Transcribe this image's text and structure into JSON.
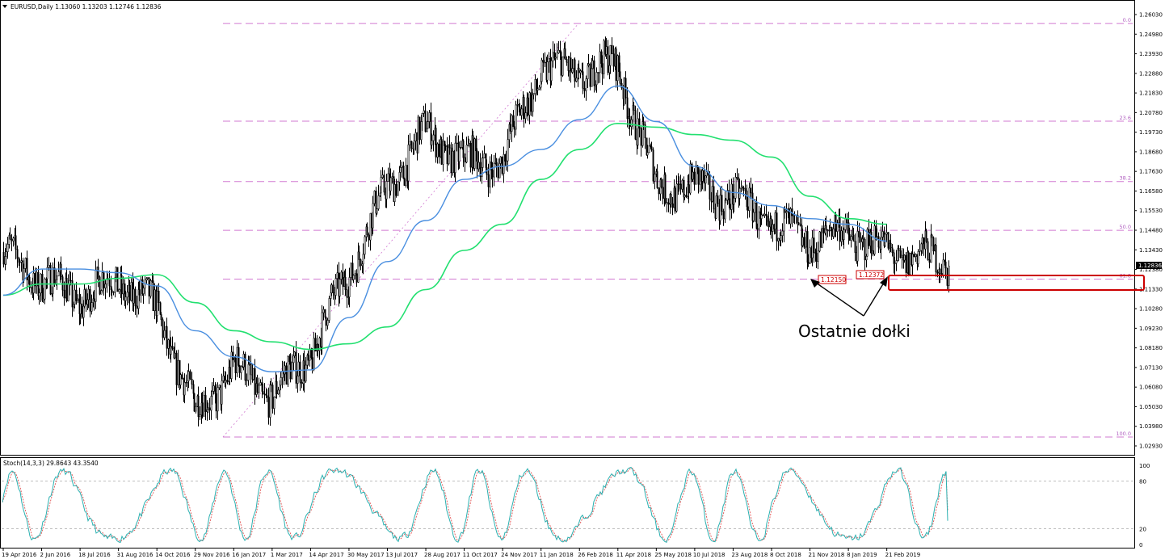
{
  "header": {
    "symbol_line": "EURUSD,Daily  1.13060 1.13203 1.12746 1.12836",
    "stoch_line": "Stoch(14,3,3) 29.8643 43.3540"
  },
  "annotation": {
    "text": "Ostatnie dołki",
    "low1_label": "1.12150",
    "low2_label": "1.12372"
  },
  "colors": {
    "ma_fast": "#4a8fe0",
    "ma_slow": "#22e070",
    "fib": "#d27ad2",
    "stoch_main": "#2ab0b0",
    "stoch_signal": "#e05050",
    "highlight": "#cc0000",
    "candles": "#000000"
  },
  "chart_data": [
    {
      "type": "candlestick",
      "title": "EURUSD,Daily",
      "ohlc_last": {
        "open": 1.1306,
        "high": 1.13203,
        "low": 1.12746,
        "close": 1.12836
      },
      "current_price_label": "1.12836",
      "ylim": [
        1.0293,
        1.2603
      ],
      "y_ticks": [
        "1.26030",
        "1.24980",
        "1.23930",
        "1.22880",
        "1.21830",
        "1.20780",
        "1.19730",
        "1.18680",
        "1.17630",
        "1.16580",
        "1.15530",
        "1.14480",
        "1.13430",
        "1.12380",
        "1.11330",
        "1.10280",
        "1.09230",
        "1.08180",
        "1.07130",
        "1.06080",
        "1.05030",
        "1.03980",
        "1.02930"
      ],
      "x_ticks": [
        "19 Apr 2016",
        "2 Jun 2016",
        "18 Jul 2016",
        "31 Aug 2016",
        "14 Oct 2016",
        "29 Nov 2016",
        "16 Jan 2017",
        "1 Mar 2017",
        "14 Apr 2017",
        "30 May 2017",
        "13 Jul 2017",
        "28 Aug 2017",
        "11 Oct 2017",
        "24 Nov 2017",
        "11 Jan 2018",
        "26 Feb 2018",
        "11 Apr 2018",
        "25 May 2018",
        "10 Jul 2018",
        "23 Aug 2018",
        "8 Oct 2018",
        "21 Nov 2018",
        "8 Jan 2019",
        "21 Feb 2019"
      ],
      "price_path": [
        [
          "19 Apr 2016",
          1.133
        ],
        [
          "2 Jun 2016",
          1.118
        ],
        [
          "18 Jul 2016",
          1.109
        ],
        [
          "31 Aug 2016",
          1.118
        ],
        [
          "14 Oct 2016",
          1.102
        ],
        [
          "29 Nov 2016",
          1.047
        ],
        [
          "16 Jan 2017",
          1.071
        ],
        [
          "1 Mar 2017",
          1.056
        ],
        [
          "14 Apr 2017",
          1.079
        ],
        [
          "30 May 2017",
          1.123
        ],
        [
          "13 Jul 2017",
          1.168
        ],
        [
          "28 Aug 2017",
          1.198
        ],
        [
          "11 Oct 2017",
          1.181
        ],
        [
          "24 Nov 2017",
          1.183
        ],
        [
          "11 Jan 2018",
          1.232
        ],
        [
          "26 Feb 2018",
          1.229
        ],
        [
          "11 Apr 2018",
          1.233
        ],
        [
          "25 May 2018",
          1.168
        ],
        [
          "10 Jul 2018",
          1.168
        ],
        [
          "23 Aug 2018",
          1.162
        ],
        [
          "8 Oct 2018",
          1.148
        ],
        [
          "21 Nov 2018",
          1.139
        ],
        [
          "8 Jan 2019",
          1.144
        ],
        [
          "21 Feb 2019",
          1.133
        ],
        [
          "end",
          1.12836
        ]
      ],
      "ma_fast_path": [
        [
          "19 Apr 2016",
          1.11
        ],
        [
          "2 Jun 2016",
          1.124
        ],
        [
          "18 Jul 2016",
          1.124
        ],
        [
          "31 Aug 2016",
          1.122
        ],
        [
          "14 Oct 2016",
          1.115
        ],
        [
          "29 Nov 2016",
          1.091
        ],
        [
          "16 Jan 2017",
          1.077
        ],
        [
          "1 Mar 2017",
          1.069
        ],
        [
          "14 Apr 2017",
          1.07
        ],
        [
          "30 May 2017",
          1.098
        ],
        [
          "13 Jul 2017",
          1.128
        ],
        [
          "28 Aug 2017",
          1.15
        ],
        [
          "11 Oct 2017",
          1.172
        ],
        [
          "24 Nov 2017",
          1.179
        ],
        [
          "11 Jan 2018",
          1.188
        ],
        [
          "26 Feb 2018",
          1.204
        ],
        [
          "11 Apr 2018",
          1.222
        ],
        [
          "25 May 2018",
          1.203
        ],
        [
          "10 Jul 2018",
          1.179
        ],
        [
          "23 Aug 2018",
          1.165
        ],
        [
          "8 Oct 2018",
          1.158
        ],
        [
          "21 Nov 2018",
          1.151
        ],
        [
          "8 Jan 2019",
          1.148
        ],
        [
          "21 Feb 2019",
          1.139
        ]
      ],
      "ma_slow_path": [
        [
          "19 Apr 2016",
          1.11
        ],
        [
          "2 Jun 2016",
          1.116
        ],
        [
          "18 Jul 2016",
          1.116
        ],
        [
          "31 Aug 2016",
          1.119
        ],
        [
          "14 Oct 2016",
          1.121
        ],
        [
          "29 Nov 2016",
          1.106
        ],
        [
          "16 Jan 2017",
          1.091
        ],
        [
          "1 Mar 2017",
          1.085
        ],
        [
          "14 Apr 2017",
          1.081
        ],
        [
          "30 May 2017",
          1.084
        ],
        [
          "13 Jul 2017",
          1.093
        ],
        [
          "28 Aug 2017",
          1.113
        ],
        [
          "11 Oct 2017",
          1.134
        ],
        [
          "24 Nov 2017",
          1.148
        ],
        [
          "11 Jan 2018",
          1.172
        ],
        [
          "26 Feb 2018",
          1.188
        ],
        [
          "11 Apr 2018",
          1.202
        ],
        [
          "25 May 2018",
          1.2
        ],
        [
          "10 Jul 2018",
          1.196
        ],
        [
          "23 Aug 2018",
          1.193
        ],
        [
          "8 Oct 2018",
          1.184
        ],
        [
          "21 Nov 2018",
          1.163
        ],
        [
          "8 Jan 2019",
          1.151
        ],
        [
          "21 Feb 2019",
          1.148
        ]
      ],
      "fibonacci": {
        "high": 1.25547,
        "low": 1.03406,
        "levels": [
          {
            "label": "0.0",
            "price": 1.25547
          },
          {
            "label": "23.6",
            "price": 1.20322
          },
          {
            "label": "38.2",
            "price": 1.17089
          },
          {
            "label": "50.0",
            "price": 1.14477
          },
          {
            "label": "61.8",
            "price": 1.11864
          },
          {
            "label": "100.0",
            "price": 1.03406
          }
        ]
      },
      "marked_lows": [
        {
          "label": "1.12150",
          "price": 1.1215
        },
        {
          "label": "1.12372",
          "price": 1.12372
        }
      ]
    },
    {
      "type": "line",
      "title": "Stoch(14,3,3)",
      "main_last": 29.8643,
      "signal_last": 43.354,
      "ylim": [
        0,
        100
      ],
      "levels": [
        20,
        80
      ],
      "y_ticks": [
        "100",
        "80",
        "20",
        "0"
      ]
    }
  ]
}
